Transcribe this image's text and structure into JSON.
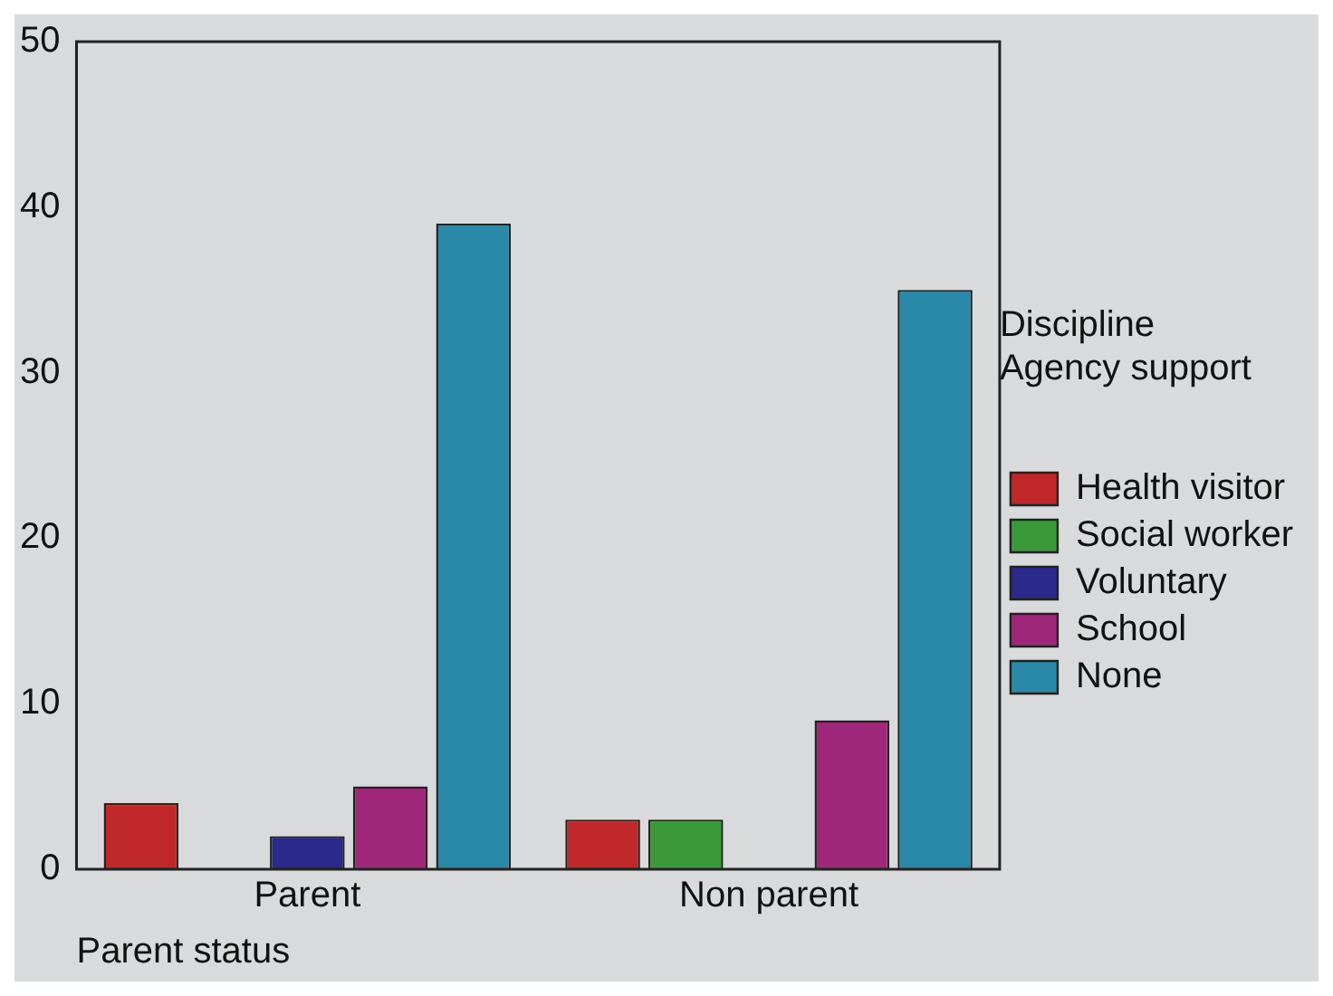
{
  "chart_data": {
    "type": "bar",
    "xlabel": "Parent status",
    "legend_title": "Discipline\nAgency support",
    "categories": [
      "Parent",
      "Non parent"
    ],
    "series": [
      {
        "name": "Health visitor",
        "color": "#c0282a",
        "values": [
          4,
          3
        ]
      },
      {
        "name": "Social worker",
        "color": "#3a9a3a",
        "values": [
          0,
          3
        ]
      },
      {
        "name": "Voluntary",
        "color": "#2a2a8a",
        "values": [
          2,
          0
        ]
      },
      {
        "name": "School",
        "color": "#a0287a",
        "values": [
          5,
          9
        ]
      },
      {
        "name": "None",
        "color": "#2a88a8",
        "values": [
          39,
          35
        ]
      }
    ],
    "ylim": [
      0,
      50
    ],
    "yticks": [
      0,
      10,
      20,
      30,
      40,
      50
    ],
    "grid": false,
    "legend": "right"
  }
}
